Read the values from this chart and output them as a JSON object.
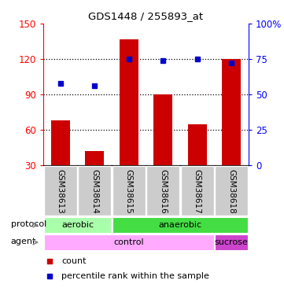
{
  "title": "GDS1448 / 255893_at",
  "samples": [
    "GSM38613",
    "GSM38614",
    "GSM38615",
    "GSM38616",
    "GSM38617",
    "GSM38618"
  ],
  "counts": [
    68,
    42,
    137,
    90,
    65,
    120
  ],
  "percentile_ranks": [
    58,
    56,
    75,
    74,
    75,
    72
  ],
  "ylim_left": [
    30,
    150
  ],
  "ylim_right": [
    0,
    100
  ],
  "yticks_left": [
    30,
    60,
    90,
    120,
    150
  ],
  "yticks_right": [
    0,
    25,
    50,
    75,
    100
  ],
  "ytick_labels_left": [
    "30",
    "60",
    "90",
    "120",
    "150"
  ],
  "ytick_labels_right": [
    "0",
    "25",
    "50",
    "75",
    "100%"
  ],
  "bar_color": "#cc0000",
  "dot_color": "#0000cc",
  "protocol_aerobic_color": "#aaffaa",
  "protocol_anaerobic_color": "#44dd44",
  "agent_control_color": "#ffaaff",
  "agent_sucrose_color": "#cc44cc",
  "sample_label_bg": "#cccccc",
  "protocol_row_label": "protocol",
  "agent_row_label": "agent",
  "legend_count_label": "count",
  "legend_pct_label": "percentile rank within the sample",
  "bg_color": "#ffffff",
  "fig_width": 3.61,
  "fig_height": 3.75,
  "dpi": 100
}
